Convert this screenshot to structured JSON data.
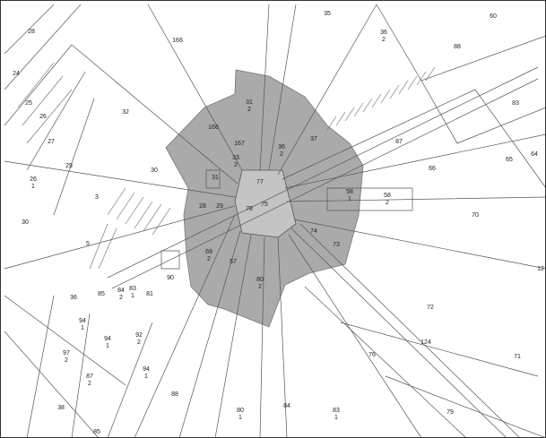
{
  "parcels": [
    {
      "number": "28"
    },
    {
      "number": "166"
    },
    {
      "number": "35"
    },
    {
      "number": "36",
      "sub": "2"
    },
    {
      "number": "60"
    },
    {
      "number": "88"
    },
    {
      "number": "24"
    },
    {
      "number": "25"
    },
    {
      "number": "26"
    },
    {
      "number": "32"
    },
    {
      "number": "166"
    },
    {
      "number": "31",
      "sub": "2"
    },
    {
      "number": "167"
    },
    {
      "number": "33",
      "sub": "2"
    },
    {
      "number": "36",
      "sub": "2"
    },
    {
      "number": "37"
    },
    {
      "number": "87"
    },
    {
      "number": "83"
    },
    {
      "number": "27"
    },
    {
      "number": "29"
    },
    {
      "number": "30"
    },
    {
      "number": "31"
    },
    {
      "number": "77"
    },
    {
      "number": "66"
    },
    {
      "number": "65"
    },
    {
      "number": "64"
    },
    {
      "number": "26",
      "sub": "1"
    },
    {
      "number": "3"
    },
    {
      "number": "28"
    },
    {
      "number": "29"
    },
    {
      "number": "78"
    },
    {
      "number": "75"
    },
    {
      "number": "58",
      "sub": "1"
    },
    {
      "number": "58",
      "sub": "2"
    },
    {
      "number": "70"
    },
    {
      "number": "30"
    },
    {
      "number": "74"
    },
    {
      "number": "73"
    },
    {
      "number": "69",
      "sub": "2"
    },
    {
      "number": "57"
    },
    {
      "number": "5"
    },
    {
      "number": "80",
      "sub": "2"
    },
    {
      "number": "90"
    },
    {
      "number": "85"
    },
    {
      "number": "84",
      "sub": "2"
    },
    {
      "number": "83",
      "sub": "1"
    },
    {
      "number": "81"
    },
    {
      "number": "36"
    },
    {
      "number": "72"
    },
    {
      "number": "12"
    },
    {
      "number": "94",
      "sub": "1"
    },
    {
      "number": "124"
    },
    {
      "number": "76"
    },
    {
      "number": "71"
    },
    {
      "number": "94",
      "sub": "1"
    },
    {
      "number": "92",
      "sub": "2"
    },
    {
      "number": "97",
      "sub": "2"
    },
    {
      "number": "94",
      "sub": "1"
    },
    {
      "number": "87",
      "sub": "2"
    },
    {
      "number": "88"
    },
    {
      "number": "38"
    },
    {
      "number": "84"
    },
    {
      "number": "80",
      "sub": "1"
    },
    {
      "number": "83",
      "sub": "1"
    },
    {
      "number": "79"
    },
    {
      "number": "85"
    }
  ]
}
